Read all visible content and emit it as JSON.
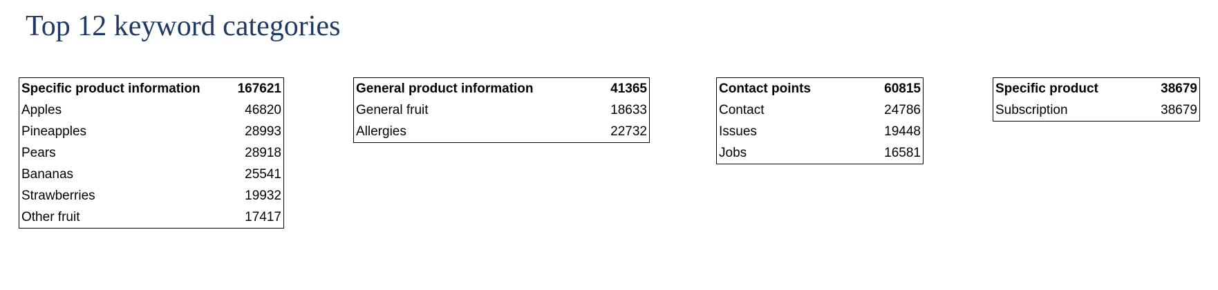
{
  "title": "Top 12 keyword categories",
  "tables": [
    {
      "header": {
        "label": "Specific product information",
        "value": 167621
      },
      "rows": [
        {
          "label": "Apples",
          "value": 46820
        },
        {
          "label": "Pineapples",
          "value": 28993
        },
        {
          "label": "Pears",
          "value": 28918
        },
        {
          "label": "Bananas",
          "value": 25541
        },
        {
          "label": "Strawberries",
          "value": 19932
        },
        {
          "label": "Other fruit",
          "value": 17417
        }
      ]
    },
    {
      "header": {
        "label": "General product information",
        "value": 41365
      },
      "rows": [
        {
          "label": "General fruit",
          "value": 18633
        },
        {
          "label": "Allergies",
          "value": 22732
        }
      ]
    },
    {
      "header": {
        "label": "Contact points",
        "value": 60815
      },
      "rows": [
        {
          "label": "Contact",
          "value": 24786
        },
        {
          "label": "Issues",
          "value": 19448
        },
        {
          "label": "Jobs",
          "value": 16581
        }
      ]
    },
    {
      "header": {
        "label": "Specific product",
        "value": 38679
      },
      "rows": [
        {
          "label": "Subscription",
          "value": 38679
        }
      ]
    }
  ]
}
